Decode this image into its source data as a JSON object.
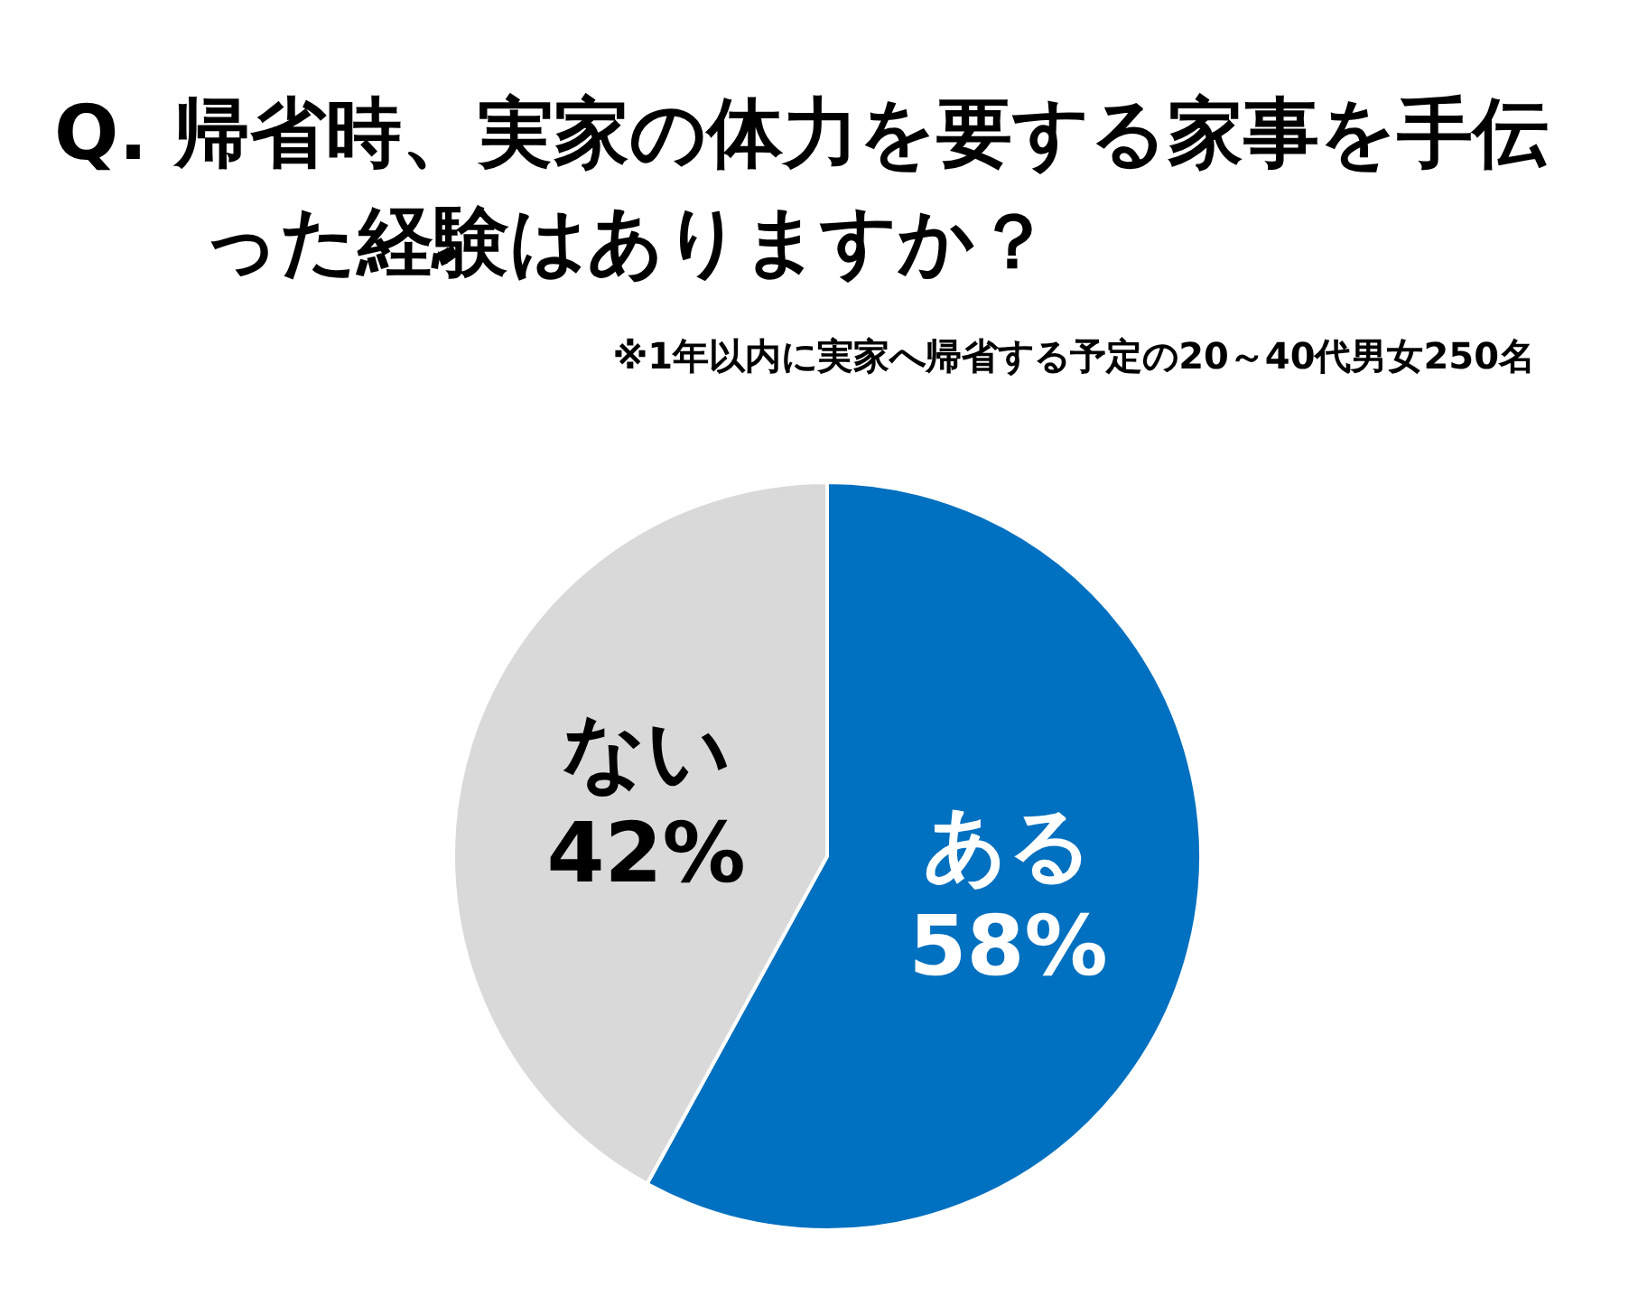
{
  "chart_data": {
    "type": "pie",
    "title": "Q. 帰省時、実家の体力を要する家事を手伝った経験はありますか？",
    "subtitle": "※1年以内に実家へ帰省する予定の20～40代男女250名",
    "categories": [
      "ある",
      "ない"
    ],
    "values": [
      58,
      42
    ],
    "colors": [
      "#0070c0",
      "#d9d9d9"
    ],
    "value_labels": [
      "58%",
      "42%"
    ],
    "legend": false
  }
}
